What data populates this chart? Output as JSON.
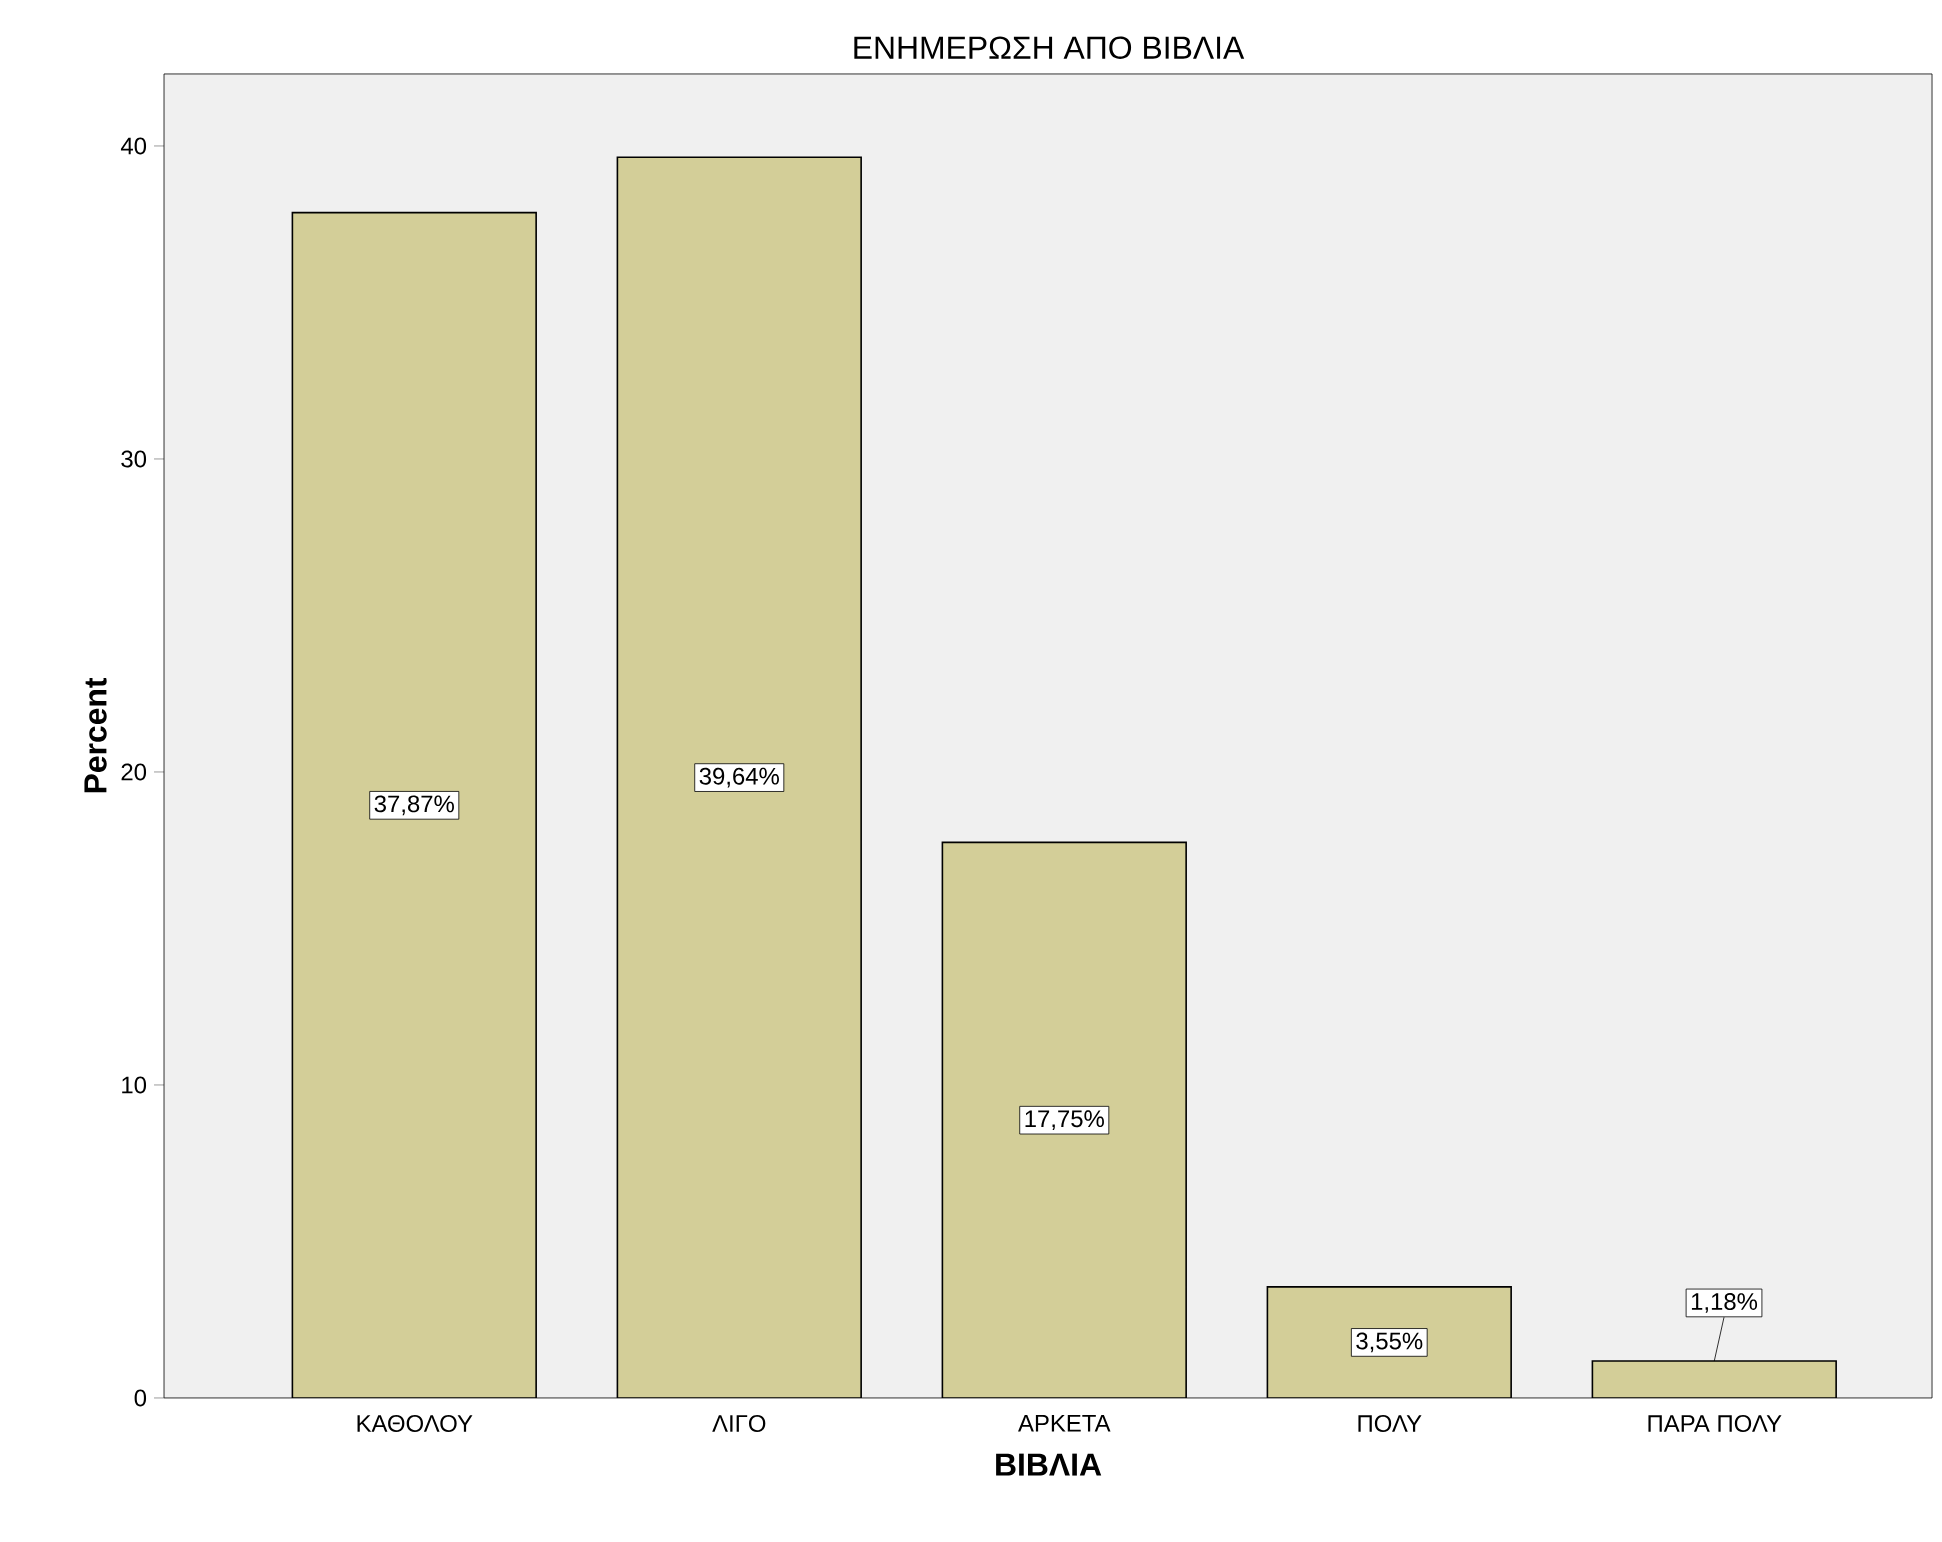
{
  "chart_data": {
    "type": "bar",
    "title": "ΕΝΗΜΕΡΩΣΗ ΑΠΟ ΒΙΒΛΙΑ",
    "xlabel": "ΒΙΒΛΙΑ",
    "ylabel": "Percent",
    "categories": [
      "ΚΑΘΟΛΟΥ",
      "ΛΙΓΟ",
      "ΑΡΚΕΤΑ",
      "ΠΟΛΥ",
      "ΠΑΡΑ ΠΟΛΥ"
    ],
    "values": [
      37.87,
      39.64,
      17.75,
      3.55,
      1.18
    ],
    "value_labels": [
      "37,87%",
      "39,64%",
      "17,75%",
      "3,55%",
      "1,18%"
    ],
    "color": "#d3ce98",
    "ylim": [
      0,
      42.3
    ],
    "yticks": [
      0,
      10,
      20,
      30,
      40
    ]
  }
}
